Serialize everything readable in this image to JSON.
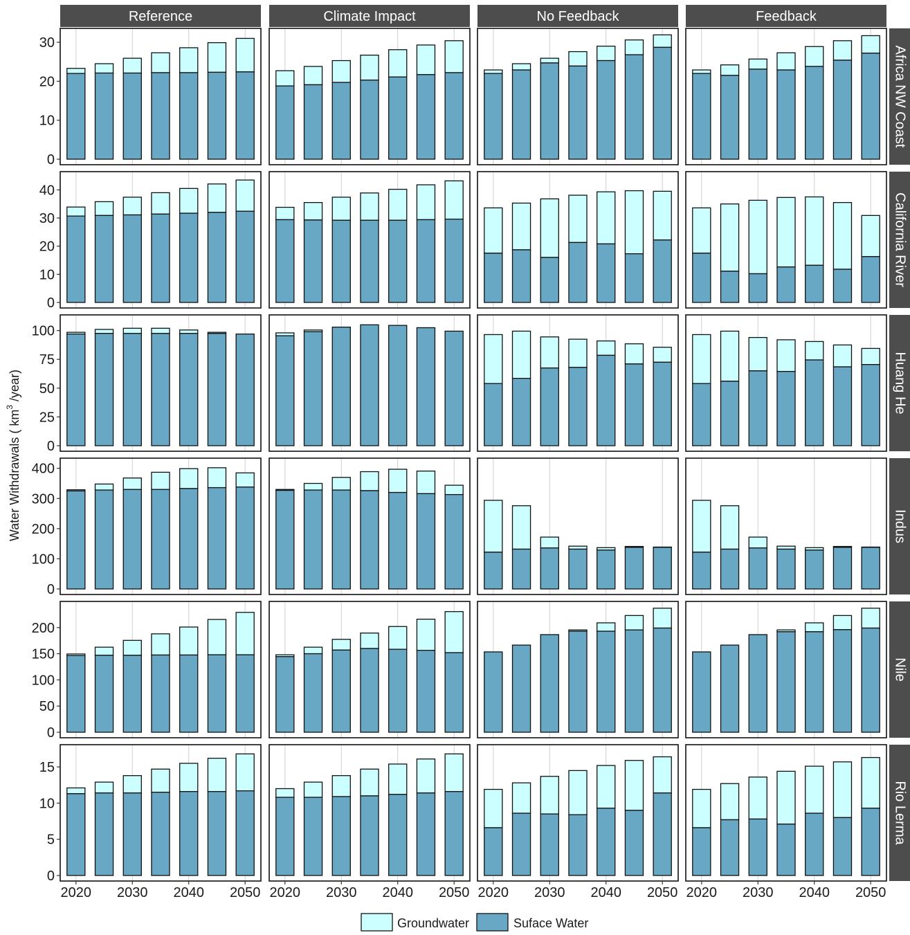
{
  "chart_data": {
    "type": "bar",
    "stacked": true,
    "facet_grid": true,
    "ylabel_prefix": "Water Withdrawals (",
    "ylabel_unit": "km",
    "ylabel_superscript": "3",
    "ylabel_suffix": "/year)",
    "x": [
      2020,
      2025,
      2030,
      2035,
      2040,
      2045,
      2050
    ],
    "x_ticks": [
      2020,
      2030,
      2040,
      2050
    ],
    "x_tick_labels": [
      "2020",
      "2030",
      "2040",
      "2050"
    ],
    "columns": [
      "Reference",
      "Climate Impact",
      "No Feedback",
      "Feedback"
    ],
    "rows": [
      {
        "label": "Africa NW Coast",
        "ylim": [
          0,
          32.5
        ],
        "yticks": [
          0,
          10,
          20,
          30
        ],
        "ytick_labels": [
          "0",
          "10",
          "20",
          "30"
        ]
      },
      {
        "label": "California River",
        "ylim": [
          0,
          45
        ],
        "yticks": [
          0,
          10,
          20,
          30,
          40
        ],
        "ytick_labels": [
          "0",
          "10",
          "20",
          "30",
          "40"
        ]
      },
      {
        "label": "Huang He",
        "ylim": [
          0,
          110
        ],
        "yticks": [
          0,
          25,
          50,
          75,
          100
        ],
        "ytick_labels": [
          "0",
          "25",
          "50",
          "75",
          "100"
        ]
      },
      {
        "label": "Indus",
        "ylim": [
          0,
          420
        ],
        "yticks": [
          0,
          100,
          200,
          300,
          400
        ],
        "ytick_labels": [
          "0",
          "100",
          "200",
          "300",
          "400"
        ]
      },
      {
        "label": "Nile",
        "ylim": [
          0,
          242
        ],
        "yticks": [
          0,
          50,
          100,
          150,
          200
        ],
        "ytick_labels": [
          "0",
          "50",
          "100",
          "150",
          "200"
        ]
      },
      {
        "label": "Rio Lerma",
        "ylim": [
          0,
          17.5
        ],
        "yticks": [
          0,
          5,
          10,
          15
        ],
        "ytick_labels": [
          "0",
          "5",
          "10",
          "15"
        ]
      }
    ],
    "series": [
      {
        "name": "Groundwater",
        "color": "#ccffff"
      },
      {
        "name": "Suface Water",
        "color": "#69a8c4"
      }
    ],
    "legend_position": "bottom",
    "grid": true,
    "panels": [
      [
        {
          "surface": [
            22.0,
            22.1,
            22.1,
            22.2,
            22.2,
            22.3,
            22.4
          ],
          "groundwater": [
            1.3,
            2.4,
            3.8,
            5.1,
            6.4,
            7.6,
            8.6
          ]
        },
        {
          "surface": [
            18.8,
            19.1,
            19.7,
            20.3,
            21.1,
            21.7,
            22.2
          ],
          "groundwater": [
            3.9,
            4.7,
            5.6,
            6.4,
            7.0,
            7.6,
            8.2
          ]
        },
        {
          "surface": [
            22.0,
            22.9,
            24.7,
            23.9,
            25.3,
            26.8,
            28.7
          ],
          "groundwater": [
            0.9,
            1.6,
            1.2,
            3.7,
            3.7,
            3.8,
            3.2
          ]
        },
        {
          "surface": [
            22.0,
            21.5,
            23.1,
            22.9,
            23.8,
            25.4,
            27.2
          ],
          "groundwater": [
            0.9,
            2.7,
            2.6,
            4.4,
            5.1,
            5.0,
            4.5
          ]
        }
      ],
      [
        {
          "surface": [
            30.7,
            30.9,
            31.1,
            31.4,
            31.7,
            32.0,
            32.4
          ],
          "groundwater": [
            3.2,
            4.9,
            6.3,
            7.6,
            8.8,
            10.1,
            11.1
          ]
        },
        {
          "surface": [
            29.4,
            29.3,
            29.2,
            29.2,
            29.2,
            29.4,
            29.6
          ],
          "groundwater": [
            4.4,
            6.2,
            8.2,
            9.7,
            11.0,
            12.4,
            13.6
          ]
        },
        {
          "surface": [
            17.5,
            18.7,
            16.0,
            21.3,
            20.8,
            17.3,
            22.2
          ],
          "groundwater": [
            16.1,
            16.6,
            20.8,
            16.8,
            18.5,
            22.4,
            17.3
          ]
        },
        {
          "surface": [
            17.5,
            11.1,
            10.2,
            12.6,
            13.2,
            11.8,
            16.3
          ],
          "groundwater": [
            16.1,
            23.9,
            26.1,
            24.7,
            24.3,
            23.7,
            14.6
          ]
        }
      ],
      [
        {
          "surface": [
            97.0,
            97.5,
            97.5,
            97.5,
            97.5,
            97.5,
            97.0
          ],
          "groundwater": [
            1.5,
            3.5,
            4.5,
            4.5,
            3.0,
            1.0,
            0.0
          ]
        },
        {
          "surface": [
            95.5,
            99.0,
            103.0,
            105.0,
            104.5,
            102.5,
            99.5
          ],
          "groundwater": [
            2.5,
            1.5,
            0.0,
            0.0,
            0.0,
            0.0,
            0.0
          ]
        },
        {
          "surface": [
            54.0,
            58.5,
            67.5,
            68.0,
            78.5,
            71.0,
            72.5
          ],
          "groundwater": [
            42.5,
            41.0,
            27.0,
            24.5,
            12.5,
            17.5,
            13.0
          ]
        },
        {
          "surface": [
            54.0,
            56.0,
            65.0,
            64.5,
            74.5,
            68.5,
            70.5
          ],
          "groundwater": [
            42.5,
            43.5,
            29.0,
            27.5,
            16.0,
            19.0,
            14.0
          ]
        }
      ],
      [
        {
          "surface": [
            325,
            328,
            330,
            330,
            333,
            336,
            338
          ],
          "groundwater": [
            4,
            20,
            38,
            57,
            66,
            66,
            47
          ]
        },
        {
          "surface": [
            327,
            328,
            328,
            326,
            320,
            316,
            313
          ],
          "groundwater": [
            3,
            22,
            42,
            63,
            77,
            75,
            31
          ]
        },
        {
          "surface": [
            122,
            132,
            136,
            132,
            129,
            138,
            138
          ],
          "groundwater": [
            172,
            144,
            36,
            10,
            8,
            3,
            1
          ]
        },
        {
          "surface": [
            122,
            132,
            136,
            132,
            129,
            138,
            138
          ],
          "groundwater": [
            172,
            144,
            36,
            10,
            8,
            3,
            1
          ]
        }
      ],
      [
        {
          "surface": [
            146.5,
            147.0,
            147.0,
            147.5,
            147.5,
            148.0,
            148.0
          ],
          "groundwater": [
            3.0,
            15.5,
            28.5,
            40.5,
            53.5,
            67.5,
            81.0
          ]
        },
        {
          "surface": [
            144.5,
            150.0,
            157.0,
            160.0,
            158.5,
            156.5,
            152.0
          ],
          "groundwater": [
            3.5,
            12.5,
            20.5,
            29.5,
            43.5,
            59.5,
            78.5
          ]
        },
        {
          "surface": [
            153.5,
            166.5,
            186.5,
            193.0,
            193.0,
            195.5,
            199.0
          ],
          "groundwater": [
            0.0,
            0.0,
            0.0,
            2.5,
            16.0,
            27.5,
            38.0
          ]
        },
        {
          "surface": [
            153.5,
            166.5,
            186.5,
            192.0,
            192.0,
            196.0,
            199.0
          ],
          "groundwater": [
            0.0,
            0.0,
            0.0,
            3.5,
            17.0,
            27.0,
            38.0
          ]
        }
      ],
      [
        {
          "surface": [
            11.3,
            11.4,
            11.4,
            11.5,
            11.6,
            11.6,
            11.7
          ],
          "groundwater": [
            0.8,
            1.5,
            2.4,
            3.2,
            3.9,
            4.6,
            5.1
          ]
        },
        {
          "surface": [
            10.8,
            10.8,
            10.9,
            11.0,
            11.2,
            11.4,
            11.6
          ],
          "groundwater": [
            1.2,
            2.1,
            2.9,
            3.7,
            4.2,
            4.7,
            5.2
          ]
        },
        {
          "surface": [
            6.6,
            8.6,
            8.5,
            8.4,
            9.3,
            9.0,
            11.4
          ],
          "groundwater": [
            5.3,
            4.2,
            5.2,
            6.1,
            5.9,
            6.9,
            5.0
          ]
        },
        {
          "surface": [
            6.6,
            7.7,
            7.8,
            7.1,
            8.6,
            8.0,
            9.3
          ],
          "groundwater": [
            5.3,
            5.0,
            5.8,
            7.3,
            6.5,
            7.7,
            7.0
          ]
        }
      ]
    ]
  }
}
